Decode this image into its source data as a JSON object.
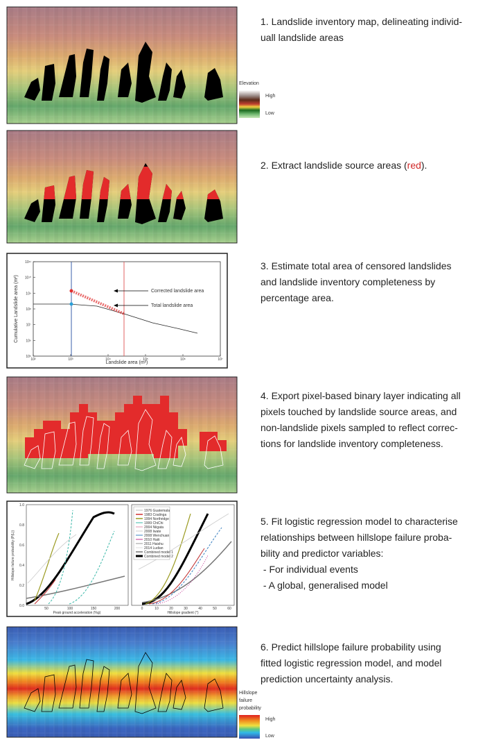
{
  "steps": [
    {
      "lines": [
        "1. Landslide inventory map, delineating individ-",
        "uall landslide areas"
      ]
    },
    {
      "lines": [
        "2. Extract landslide source areas (",
        "red",
        ")."
      ]
    },
    {
      "lines": [
        "3. Estimate total area of censored landslides",
        "and landslide inventory completeness by",
        "percentage area."
      ]
    },
    {
      "lines": [
        "4. Export pixel-based binary layer indicating all",
        "pixels touched by landslide source areas, and",
        "non-landslide pixels sampled to reflect correc-",
        "tions for landslide inventory completeness."
      ]
    },
    {
      "lines": [
        "5. Fit logistic regression model to characterise",
        "relationships between hillslope failure proba-",
        "bility and predictor variables:",
        " - For individual events",
        " - A global, generalised model"
      ]
    },
    {
      "lines": [
        "6. Predict hillslope failure probability using",
        "fitted logistic regression model, and model",
        "prediction uncertainty analysis."
      ]
    }
  ],
  "legends": {
    "elevation": {
      "title": "Elevation",
      "high": "High",
      "low": "Low"
    },
    "probability": {
      "title_lines": [
        "Hillslope",
        "failure",
        "probability"
      ],
      "high": "High",
      "low": "Low"
    }
  },
  "panel3": {
    "y_label": "Cumulative Landslide area (m²)",
    "x_label": "Landslide area (m²)",
    "x_ticks": [
      "10²",
      "10³",
      "10⁴",
      "10⁵",
      "10⁶",
      "10⁷"
    ],
    "y_ticks": [
      "10¹¹",
      "10¹⁰",
      "10⁹",
      "10⁸",
      "10⁷",
      "10⁶",
      "10⁵"
    ],
    "annotations": [
      "Corrected landslide area",
      "Total landslide area"
    ]
  },
  "panel5": {
    "y_label": "Hillslope failure probability (P(L))",
    "x_label_left": "Peak ground acceleration (%g)",
    "x_label_right": "Hillslope gradient (°)",
    "y_ticks": [
      "1.0",
      "0.8",
      "0.6",
      "0.4",
      "0.2",
      "0.0"
    ],
    "x_ticks_left": [
      "50",
      "100",
      "150",
      "200"
    ],
    "x_ticks_right": [
      "0",
      "10",
      "20",
      "30",
      "40",
      "50",
      "60"
    ],
    "legend": [
      "1976 Guatemala",
      "1983 Coalinga",
      "1994 Northridge",
      "1999 ChiChi",
      "2004 Niigata",
      "2008 Iwate",
      "2008 Wenchuan",
      "2010 Haiti",
      "2011 Haishu",
      "2014 Ludian",
      "Combined model 1",
      "Combined model 2"
    ]
  }
}
